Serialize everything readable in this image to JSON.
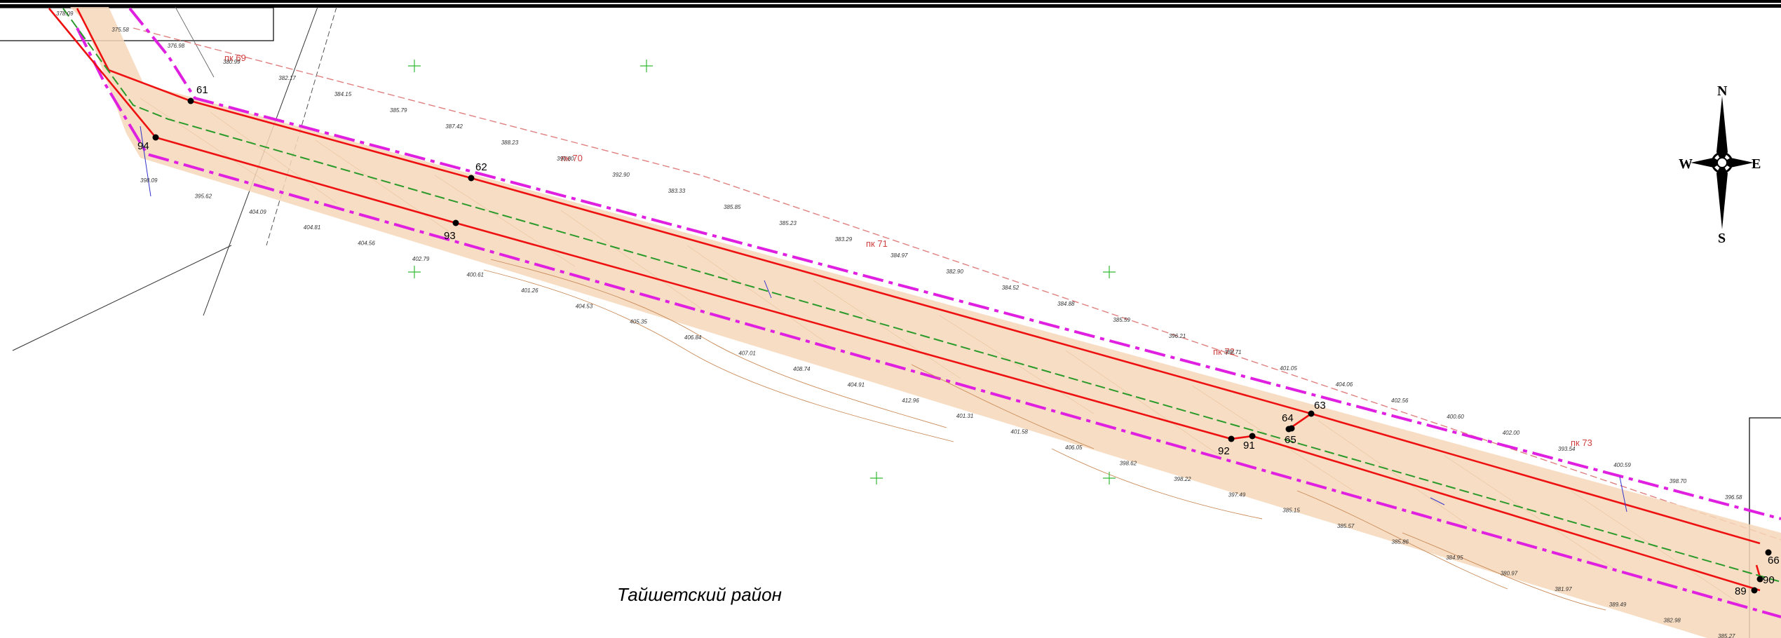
{
  "region_label": "Тайшетский район",
  "compass": {
    "n": "N",
    "s": "S",
    "w": "W",
    "e": "E"
  },
  "pickets": [
    {
      "id": "pk69",
      "text": "пк 69"
    },
    {
      "id": "pk70",
      "text": "пк 70"
    },
    {
      "id": "pk71",
      "text": "пк 71"
    },
    {
      "id": "pk72",
      "text": "пк 72"
    },
    {
      "id": "pk73",
      "text": "пк 73"
    }
  ],
  "points": [
    {
      "id": "p61",
      "label": "61"
    },
    {
      "id": "p94",
      "label": "94"
    },
    {
      "id": "p62",
      "label": "62"
    },
    {
      "id": "p93",
      "label": "93"
    },
    {
      "id": "p63",
      "label": "63"
    },
    {
      "id": "p64",
      "label": "64"
    },
    {
      "id": "p65",
      "label": "65"
    },
    {
      "id": "p91",
      "label": "91"
    },
    {
      "id": "p92",
      "label": "92"
    },
    {
      "id": "p66",
      "label": "66"
    },
    {
      "id": "p90",
      "label": "90"
    },
    {
      "id": "p89",
      "label": "89"
    }
  ],
  "elevations": [
    "378.09",
    "375.58",
    "376.98",
    "380.99",
    "382.17",
    "384.15",
    "385.79",
    "387.42",
    "388.23",
    "390.80",
    "392.90",
    "383.33",
    "385.85",
    "385.23",
    "383.29",
    "384.97",
    "382.90",
    "384.52",
    "384.88",
    "385.59",
    "396.21",
    "388.71",
    "401.05",
    "404.06",
    "402.56",
    "400.60",
    "402.00",
    "393.54",
    "400.59",
    "398.70",
    "396.58",
    "398.09",
    "395.62",
    "404.09",
    "404.81",
    "404.56",
    "402.79",
    "400.61",
    "401.26",
    "404.53",
    "405.35",
    "406.84",
    "407.01",
    "408.74",
    "404.91",
    "412.96",
    "401.31",
    "401.58",
    "406.05",
    "398.62",
    "398.22",
    "397.49",
    "385.15",
    "385.57",
    "385.86",
    "384.95",
    "380.97",
    "381.97",
    "389.49",
    "382.98",
    "385.27"
  ]
}
